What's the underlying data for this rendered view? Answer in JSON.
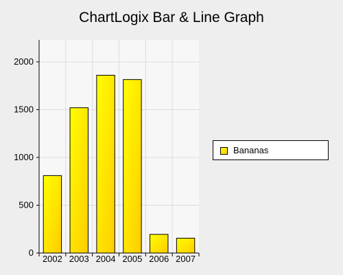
{
  "chart_data": {
    "type": "bar",
    "title": "ChartLogix Bar & Line Graph",
    "categories": [
      "2002",
      "2003",
      "2004",
      "2005",
      "2006",
      "2007"
    ],
    "series": [
      {
        "name": "Bananas",
        "values": [
          810,
          1520,
          1860,
          1815,
          195,
          155
        ]
      }
    ],
    "ylim": [
      0,
      2230
    ],
    "yticks": [
      0,
      500,
      1000,
      1500,
      2000
    ],
    "ytick_labels": [
      "0",
      "500",
      "1000",
      "1500",
      "2000"
    ],
    "grid": true,
    "legend_position": "right",
    "colors": {
      "bar_top": "#ffff00",
      "bar_bottom": "#ffcc00",
      "plot_bg": "#f7f7f7",
      "page_bg": "#eeeeee"
    }
  }
}
